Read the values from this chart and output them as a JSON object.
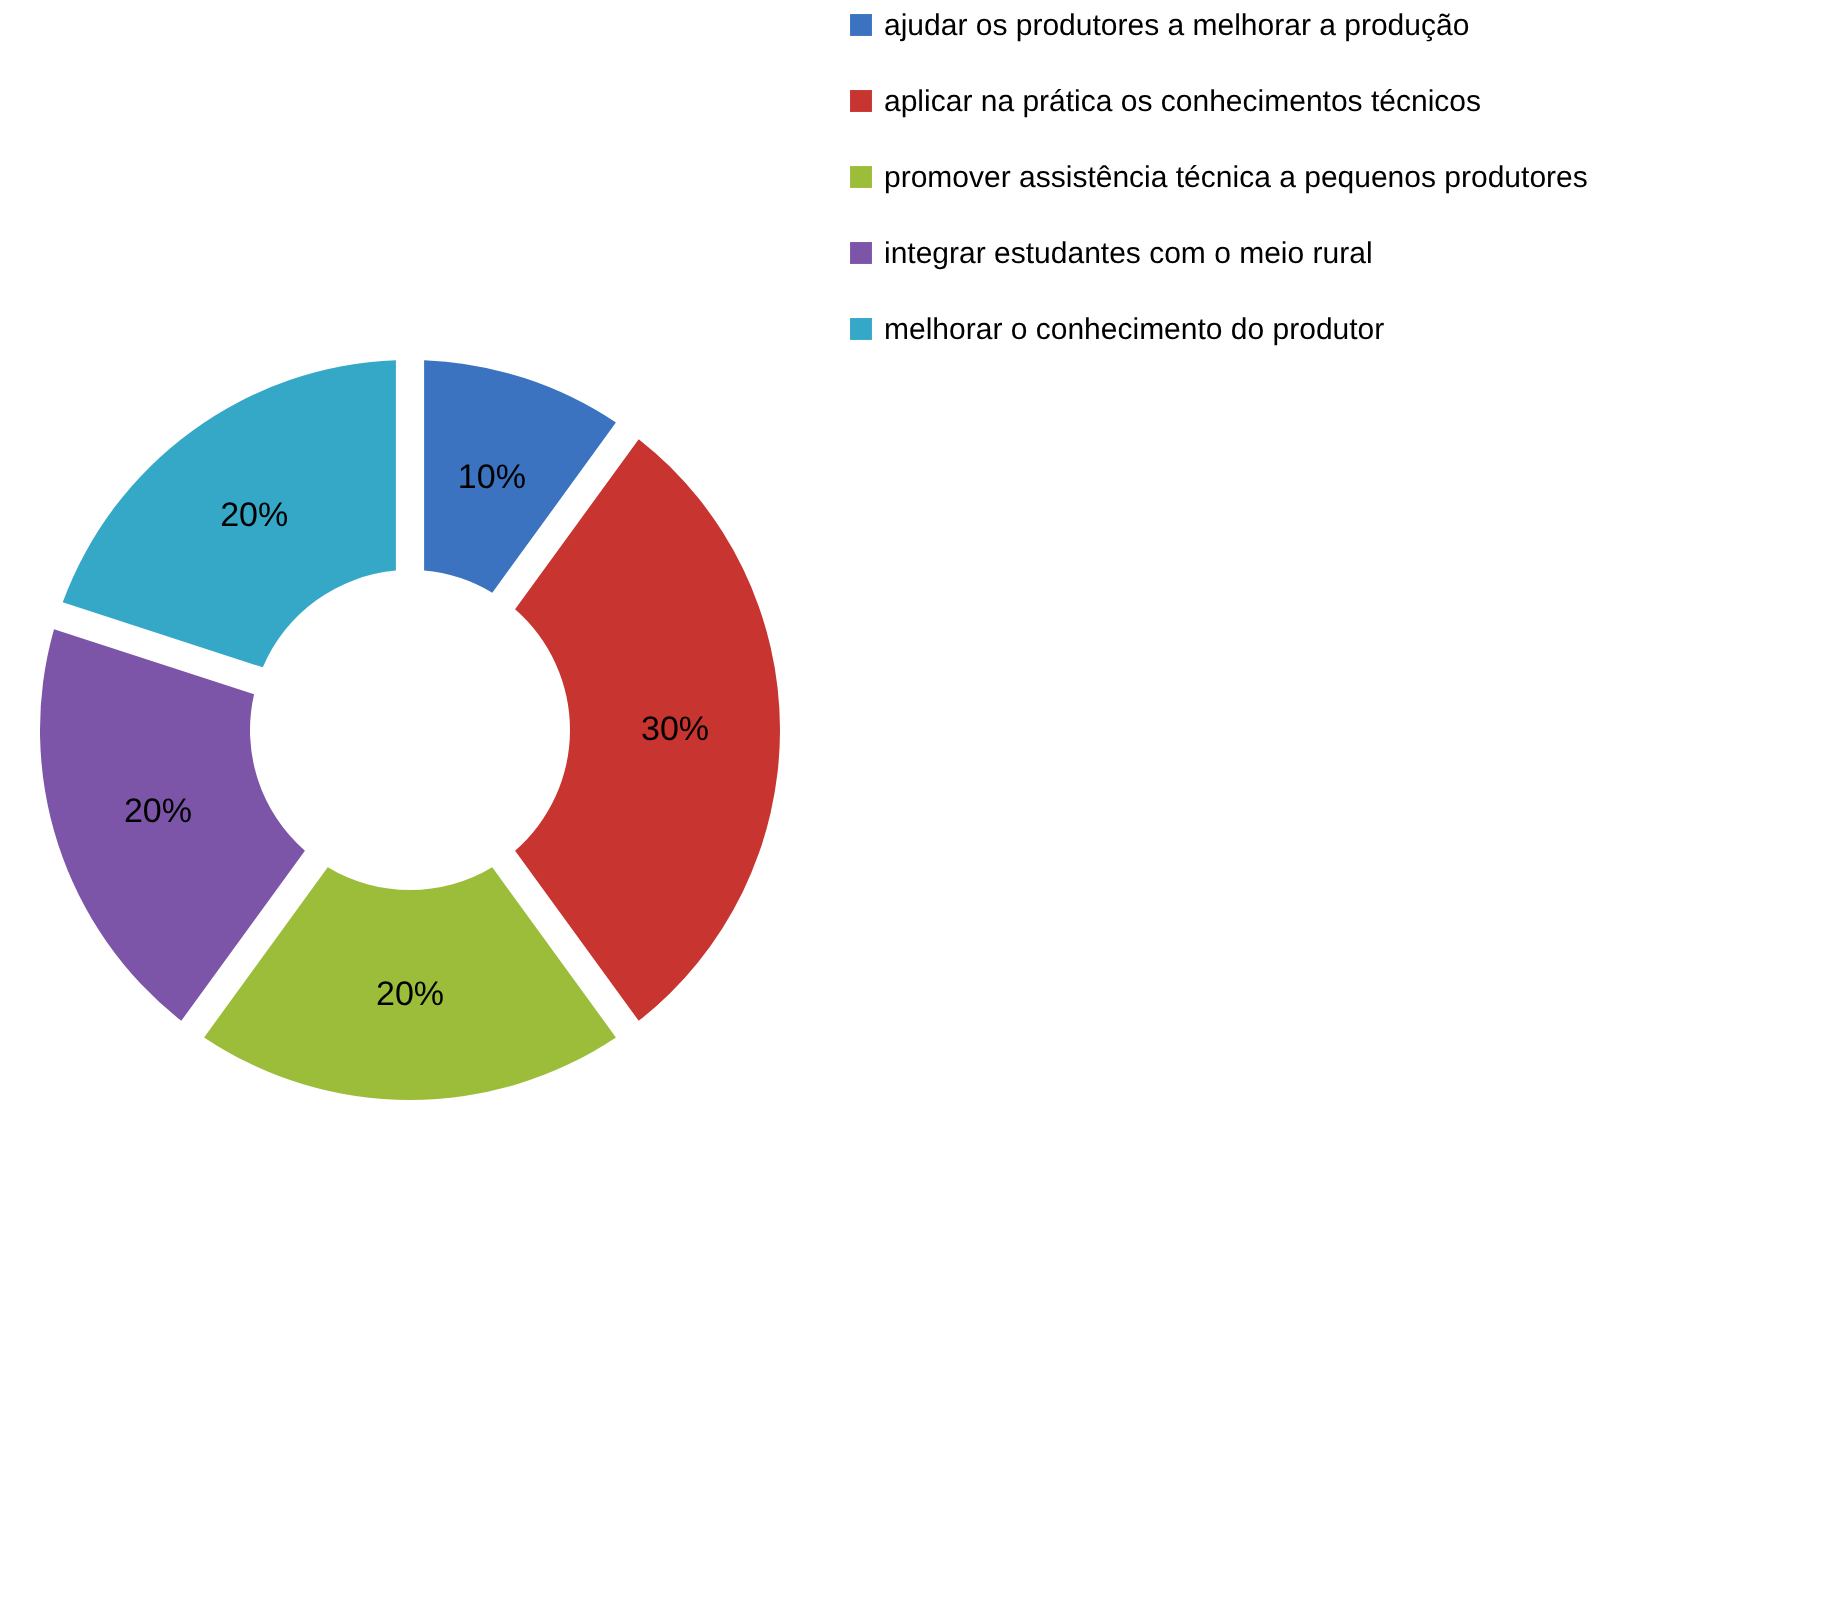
{
  "chart_data": {
    "type": "donut",
    "categories": [
      "ajudar os produtores a melhorar a produção",
      "aplicar na prática os conhecimentos técnicos",
      "promover assistência técnica a pequenos produtores",
      "integrar estudantes com o meio rural",
      "melhorar o conhecimento do produtor"
    ],
    "values": [
      10,
      30,
      20,
      20,
      20
    ],
    "colors": [
      "#3b73c0",
      "#c8342f",
      "#9bbd3a",
      "#7c55a8",
      "#35a8c8"
    ],
    "value_labels": [
      "10%",
      "30%",
      "20%",
      "20%",
      "20%"
    ],
    "legend": "right"
  }
}
